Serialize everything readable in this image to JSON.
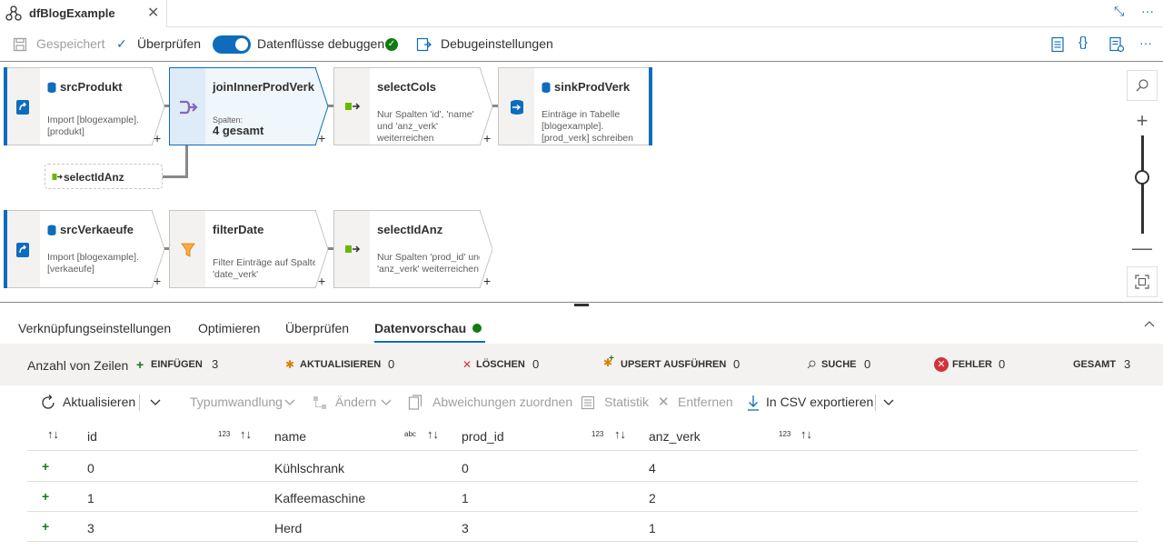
{
  "tab": {
    "title": "dfBlogExample",
    "close": "✕"
  },
  "window": {
    "collapse": "⤡",
    "more": "···"
  },
  "toolbar": {
    "saved": "Gespeichert",
    "validate": "Überprüfen",
    "debug": "Datenflüsse debuggen",
    "debug_settings": "Debugeinstellungen",
    "more": "···"
  },
  "canvas": {
    "nodes": [
      {
        "title": "srcProdukt",
        "desc": "Import [blogexample].[produkt]"
      },
      {
        "title": "joinInnerProdVerk",
        "desc": "Spalten:",
        "count": "4 gesamt"
      },
      {
        "title": "selectCols",
        "desc": "Nur Spalten 'id', 'name' und 'anz_verk' weiterreichen"
      },
      {
        "title": "sinkProdVerk",
        "desc": "Einträge in Tabelle [blogexample].[prod_verk] schreiben"
      },
      {
        "title": "srcVerkaeufe",
        "desc": "Import [blogexample].[verkaeufe]"
      },
      {
        "title": "filterDate",
        "desc": "Filter Einträge auf Spalte 'date_verk'"
      },
      {
        "title": "selectIdAnz",
        "desc": "Nur Spalten 'prod_id' und 'anz_verk' weiterreichen"
      }
    ],
    "ref_node": "selectIdAnz"
  },
  "panel": {
    "tabs": [
      "Verknüpfungseinstellungen",
      "Optimieren",
      "Überprüfen",
      "Datenvorschau"
    ],
    "counts": {
      "label": "Anzahl von Zeilen",
      "insert": "EINFÜGEN",
      "insert_v": "3",
      "update": "AKTUALISIEREN",
      "update_v": "0",
      "delete": "LÖSCHEN",
      "delete_v": "0",
      "upsert": "UPSERT AUSFÜHREN",
      "upsert_v": "0",
      "lookup": "SUCHE",
      "lookup_v": "0",
      "error": "FEHLER",
      "error_v": "0",
      "total": "GESAMT",
      "total_v": "3"
    },
    "actions": {
      "refresh": "Aktualisieren",
      "typecast": "Typumwandlung",
      "modify": "Ändern",
      "map_drifted": "Abweichungen zuordnen",
      "statistics": "Statistik",
      "remove": "Entfernen",
      "export_csv": "In CSV exportieren"
    },
    "table": {
      "columns": [
        {
          "name": "id",
          "type": "123"
        },
        {
          "name": "name",
          "type": "abc"
        },
        {
          "name": "prod_id",
          "type": "123"
        },
        {
          "name": "anz_verk",
          "type": "123"
        }
      ],
      "rows": [
        {
          "id": "0",
          "name": "Kühlschrank",
          "prod_id": "0",
          "anz_verk": "4"
        },
        {
          "id": "1",
          "name": "Kaffeemaschine",
          "prod_id": "1",
          "anz_verk": "2"
        },
        {
          "id": "3",
          "name": "Herd",
          "prod_id": "3",
          "anz_verk": "1"
        }
      ]
    }
  }
}
